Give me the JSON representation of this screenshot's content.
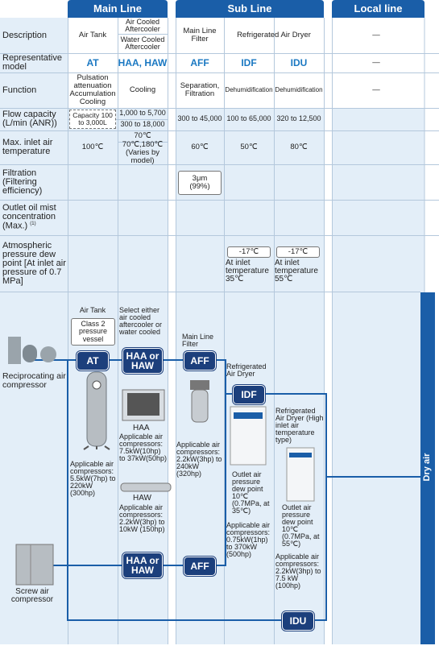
{
  "header": {
    "main_line": "Main Line",
    "sub_line": "Sub Line",
    "local_line": "Local line"
  },
  "table": {
    "labels": {
      "description": "Description",
      "model": "Representative model",
      "function": "Function",
      "flow": "Flow capacity (L/min (ANR))",
      "temperature": "Max. inlet air temperature",
      "filtration": "Filtration (Filtering efficiency)",
      "oil_mist": "Outlet oil mist concentration (Max.)",
      "oil_mist_note": "(1)",
      "dew_point": "Atmospheric pressure dew point [At inlet air pressure of 0.7 MPa]"
    },
    "description": {
      "air_tank": "Air Tank",
      "air_cooled": "Air Cooled Aftercooler",
      "water_cooled": "Water Cooled Aftercooler",
      "main_line_filter": "Main Line Filter",
      "refrigerated_air_dryer": "Refrigerated Air Dryer",
      "local": "—"
    },
    "model": {
      "air_tank": "AT",
      "aftercooler": "HAA, HAW",
      "filter": "AFF",
      "idf": "IDF",
      "idu": "IDU",
      "local": "—"
    },
    "function": {
      "air_tank": "Pulsation attenuation Accumulation Cooling",
      "aftercooler": "Cooling",
      "filter": "Separation, Filtration",
      "idf": "Dehumidification",
      "idu": "Dehumidification",
      "local": "—"
    },
    "flow": {
      "air_tank": "Capacity 100 to 3,000L",
      "air_cooled": "1,000 to 5,700",
      "water_cooled": "300 to 18,000",
      "filter": "300 to 45,000",
      "idf": "100 to 65,000",
      "idu": "320 to 12,500"
    },
    "temperature": {
      "air_tank": "100℃",
      "air_cooled": "70℃",
      "water_cooled": "70℃,180℃ (Varies by model)",
      "filter": "60℃",
      "idf": "50℃",
      "idu": "80℃"
    },
    "filtration": {
      "filter": "3μm (99%)"
    },
    "dew_point": {
      "idf": "-17℃",
      "idf_note": "At inlet temperature 35℃",
      "idu": "-17℃",
      "idu_note": "At inlet temperature 55℃"
    }
  },
  "diagram": {
    "air_tank": "Air Tank",
    "class2": "Class 2 pressure vessel",
    "select": "Select either air cooled aftercooler or water cooled",
    "badge_at": "AT",
    "badge_haa_haw": "HAA or HAW",
    "badge_aff": "AFF",
    "badge_idf": "IDF",
    "badge_idu": "IDU",
    "badge_haa_haw_2": "HAA or HAW",
    "badge_aff_2": "AFF",
    "main_line_filter": "Main Line Filter",
    "refrigerated_air_dryer": "Refrigerated Air Dryer",
    "refrigerated_air_dryer_high": "Refrigerated Air Dryer (High inlet air temperature type)",
    "reciprocating": "Reciprocating air compressor",
    "screw": "Screw air compressor",
    "haa": "HAA",
    "haw": "HAW",
    "at_applicable": "Applicable air compressors: 5.5kW(7hp) to 220kW (300hp)",
    "haa_applicable": "Applicable air compressors: 7.5kW(10hp) to 37kW(50hp)",
    "haw_applicable": "Applicable air compressors: 2.2kW(3hp) to 10kW (150hp)",
    "aff_applicable": "Applicable air compressors: 2.2kW(3hp) to 240kW (320hp)",
    "idf_dew": "Outlet air pressure dew point 10℃ (0.7MPa, at 35℃)",
    "idf_applicable": "Applicable air compressors: 0.75kW(1hp) to 370kW (500hp)",
    "idu_dew": "Outlet air pressure dew point 10℃ (0.7MPa, at 55℃)",
    "idu_applicable": "Applicable air compressors: 2.2kW(3hp) to 7.5 kW (100hp)",
    "dry_air": "Dry air"
  }
}
